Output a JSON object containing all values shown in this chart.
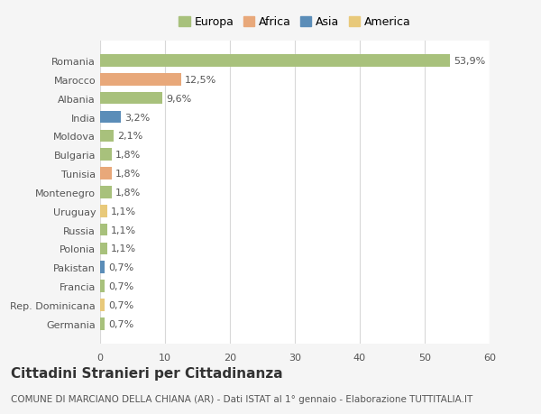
{
  "categories": [
    "Germania",
    "Rep. Dominicana",
    "Francia",
    "Pakistan",
    "Polonia",
    "Russia",
    "Uruguay",
    "Montenegro",
    "Tunisia",
    "Bulgaria",
    "Moldova",
    "India",
    "Albania",
    "Marocco",
    "Romania"
  ],
  "values": [
    0.7,
    0.7,
    0.7,
    0.7,
    1.1,
    1.1,
    1.1,
    1.8,
    1.8,
    1.8,
    2.1,
    3.2,
    9.6,
    12.5,
    53.9
  ],
  "labels": [
    "0,7%",
    "0,7%",
    "0,7%",
    "0,7%",
    "1,1%",
    "1,1%",
    "1,1%",
    "1,8%",
    "1,8%",
    "1,8%",
    "2,1%",
    "3,2%",
    "9,6%",
    "12,5%",
    "53,9%"
  ],
  "colors": [
    "#a8c17c",
    "#e8c97a",
    "#a8c17c",
    "#5b8db8",
    "#a8c17c",
    "#a8c17c",
    "#e8c97a",
    "#a8c17c",
    "#e8a87a",
    "#a8c17c",
    "#a8c17c",
    "#5b8db8",
    "#a8c17c",
    "#e8a87a",
    "#a8c17c"
  ],
  "legend_labels": [
    "Europa",
    "Africa",
    "Asia",
    "America"
  ],
  "legend_colors": [
    "#a8c17c",
    "#e8a87a",
    "#5b8db8",
    "#e8c97a"
  ],
  "xlim": [
    0,
    60
  ],
  "xticks": [
    0,
    10,
    20,
    30,
    40,
    50,
    60
  ],
  "title": "Cittadini Stranieri per Cittadinanza",
  "subtitle": "COMUNE DI MARCIANO DELLA CHIANA (AR) - Dati ISTAT al 1° gennaio - Elaborazione TUTTITALIA.IT",
  "bg_color": "#f5f5f5",
  "plot_bg_color": "#ffffff",
  "grid_color": "#d8d8d8",
  "text_color": "#555555",
  "title_fontsize": 11,
  "subtitle_fontsize": 7.5,
  "label_fontsize": 8,
  "tick_fontsize": 8,
  "legend_fontsize": 9
}
